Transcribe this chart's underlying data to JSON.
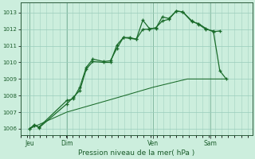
{
  "title": "Pression niveau de la mer( hPa )",
  "bg_color": "#cceedd",
  "grid_color": "#99ccbb",
  "line_color": "#1a6b2a",
  "axis_label_color": "#1a5c2a",
  "ylim": [
    1005.6,
    1013.6
  ],
  "yticks": [
    1006,
    1007,
    1008,
    1009,
    1010,
    1011,
    1012,
    1013
  ],
  "xlim": [
    0,
    250
  ],
  "day_positions": [
    10,
    50,
    143,
    205
  ],
  "day_labels": [
    "Jeu",
    "Dim",
    "Ven",
    "Sam"
  ],
  "s1x": [
    10,
    15,
    20,
    50,
    57,
    64,
    71,
    78,
    90,
    97,
    104,
    111,
    118,
    125,
    132,
    139,
    146,
    153,
    160,
    168,
    175,
    185,
    192,
    200,
    208,
    215,
    222
  ],
  "s1y": [
    1006.0,
    1006.2,
    1006.1,
    1007.7,
    1007.8,
    1008.5,
    1009.7,
    1010.2,
    1010.05,
    1010.1,
    1010.85,
    1011.5,
    1011.5,
    1011.4,
    1012.55,
    1012.05,
    1012.05,
    1012.75,
    1012.65,
    1013.1,
    1013.05,
    1012.5,
    1012.3,
    1012.0,
    1011.9,
    1009.5,
    1009.0
  ],
  "s2x": [
    10,
    15,
    20,
    50,
    57,
    64,
    71,
    78,
    90,
    97,
    104,
    111,
    118,
    125,
    132,
    139,
    146,
    153,
    160,
    168,
    175,
    185,
    192,
    200,
    208,
    215
  ],
  "s2y": [
    1006.0,
    1006.25,
    1006.05,
    1007.5,
    1007.9,
    1008.3,
    1009.6,
    1010.05,
    1010.0,
    1010.0,
    1011.05,
    1011.5,
    1011.45,
    1011.4,
    1012.0,
    1012.0,
    1012.1,
    1012.5,
    1012.6,
    1013.1,
    1013.05,
    1012.45,
    1012.35,
    1012.05,
    1011.85,
    1011.9
  ],
  "s3x": [
    10,
    50,
    100,
    143,
    180,
    222
  ],
  "s3y": [
    1006.0,
    1007.0,
    1007.8,
    1008.5,
    1009.0,
    1009.0
  ]
}
